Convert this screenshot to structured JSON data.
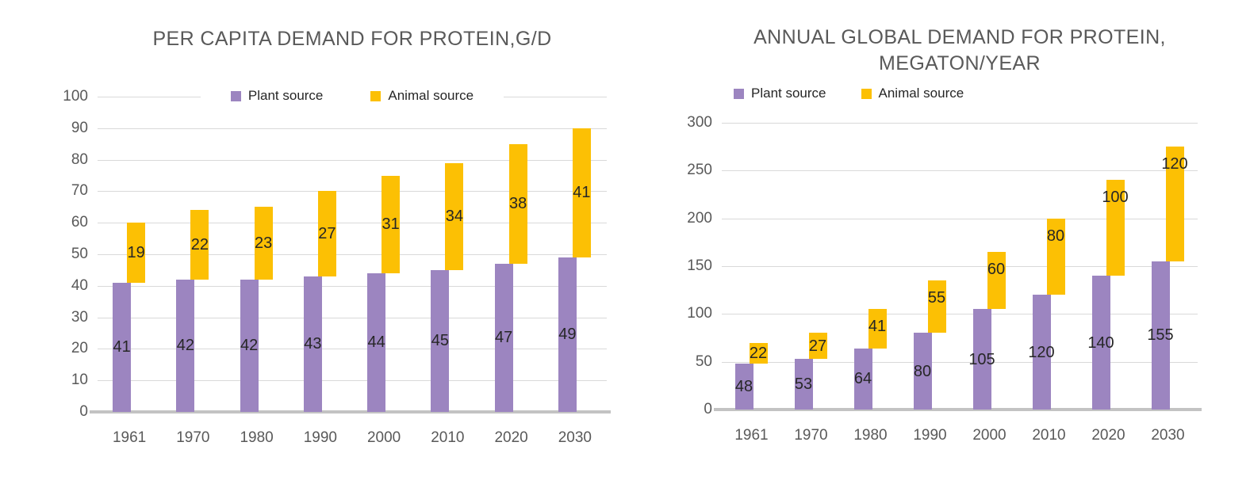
{
  "colors": {
    "background": "#ffffff",
    "title_text": "#595959",
    "axis_text": "#595959",
    "data_label_text": "#262626",
    "legend_text": "#262626",
    "gridline": "#d9d9d9",
    "axis_line": "#c3c3c3",
    "plant_series": "#9c85c0",
    "animal_series": "#fcc004"
  },
  "chart_data": [
    {
      "type": "bar",
      "stacked": true,
      "title": "PER CAPITA DEMAND FOR PROTEIN,G/D",
      "title_lines": [
        "PER CAPITA DEMAND FOR PROTEIN,G/D"
      ],
      "categories": [
        "1961",
        "1970",
        "1980",
        "1990",
        "2000",
        "2010",
        "2020",
        "2030"
      ],
      "series": [
        {
          "name": "Plant source",
          "color": "#9c85c0",
          "values": [
            41,
            42,
            42,
            43,
            44,
            45,
            47,
            49
          ]
        },
        {
          "name": "Animal source",
          "color": "#fcc004",
          "values": [
            19,
            22,
            23,
            27,
            31,
            34,
            38,
            41
          ]
        }
      ],
      "xlabel": "",
      "ylabel": "",
      "ylim": [
        0,
        100
      ],
      "yticks": [
        0,
        10,
        20,
        30,
        40,
        50,
        60,
        70,
        80,
        90,
        100
      ],
      "grid": true,
      "legend_position": "top-center",
      "data_labels": true
    },
    {
      "type": "bar",
      "stacked": true,
      "title": "ANNUAL GLOBAL DEMAND FOR PROTEIN, MEGATON/YEAR",
      "title_lines": [
        "ANNUAL GLOBAL DEMAND FOR PROTEIN,",
        "MEGATON/YEAR"
      ],
      "categories": [
        "1961",
        "1970",
        "1980",
        "1990",
        "2000",
        "2010",
        "2020",
        "2030"
      ],
      "series": [
        {
          "name": "Plant source",
          "color": "#9c85c0",
          "values": [
            48,
            53,
            64,
            80,
            105,
            120,
            140,
            155
          ]
        },
        {
          "name": "Animal source",
          "color": "#fcc004",
          "values": [
            22,
            27,
            41,
            55,
            60,
            80,
            100,
            120
          ]
        }
      ],
      "xlabel": "",
      "ylabel": "",
      "ylim": [
        0,
        300
      ],
      "yticks": [
        0,
        50,
        100,
        150,
        200,
        250,
        300
      ],
      "grid": true,
      "legend_position": "top-left",
      "data_labels": true
    }
  ]
}
